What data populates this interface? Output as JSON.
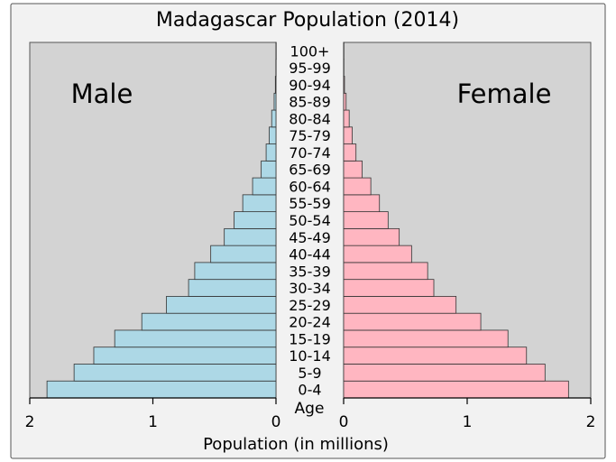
{
  "chart_data": {
    "type": "bar",
    "title": "Madagascar Population (2014)",
    "xlabel": "Population (in millions)",
    "age_label": "Age",
    "panels": {
      "left_label": "Male",
      "right_label": "Female",
      "left_ticks": [
        "2",
        "1",
        "0"
      ],
      "right_ticks": [
        "0",
        "1",
        "2"
      ]
    },
    "xlim": [
      0,
      2
    ],
    "categories": [
      "0-4",
      "5-9",
      "10-14",
      "15-19",
      "20-24",
      "25-29",
      "30-34",
      "35-39",
      "40-44",
      "45-49",
      "50-54",
      "55-59",
      "60-64",
      "65-69",
      "70-74",
      "75-79",
      "80-84",
      "85-89",
      "90-94",
      "95-99",
      "100+"
    ],
    "series": [
      {
        "name": "Male",
        "color": "#add8e6",
        "values": [
          1.86,
          1.64,
          1.48,
          1.31,
          1.09,
          0.89,
          0.71,
          0.66,
          0.53,
          0.42,
          0.34,
          0.27,
          0.19,
          0.12,
          0.08,
          0.055,
          0.035,
          0.015,
          0.005,
          0.001,
          0.0003
        ]
      },
      {
        "name": "Female",
        "color": "#ffb6c1",
        "values": [
          1.82,
          1.63,
          1.48,
          1.33,
          1.11,
          0.91,
          0.73,
          0.68,
          0.55,
          0.45,
          0.36,
          0.29,
          0.22,
          0.15,
          0.1,
          0.07,
          0.045,
          0.02,
          0.007,
          0.002,
          0.0005
        ]
      }
    ],
    "colors": {
      "panel_bg": "#d3d3d3",
      "outer_bg": "#f2f2f2",
      "border": "#555555",
      "bar_edge": "#333333"
    }
  }
}
